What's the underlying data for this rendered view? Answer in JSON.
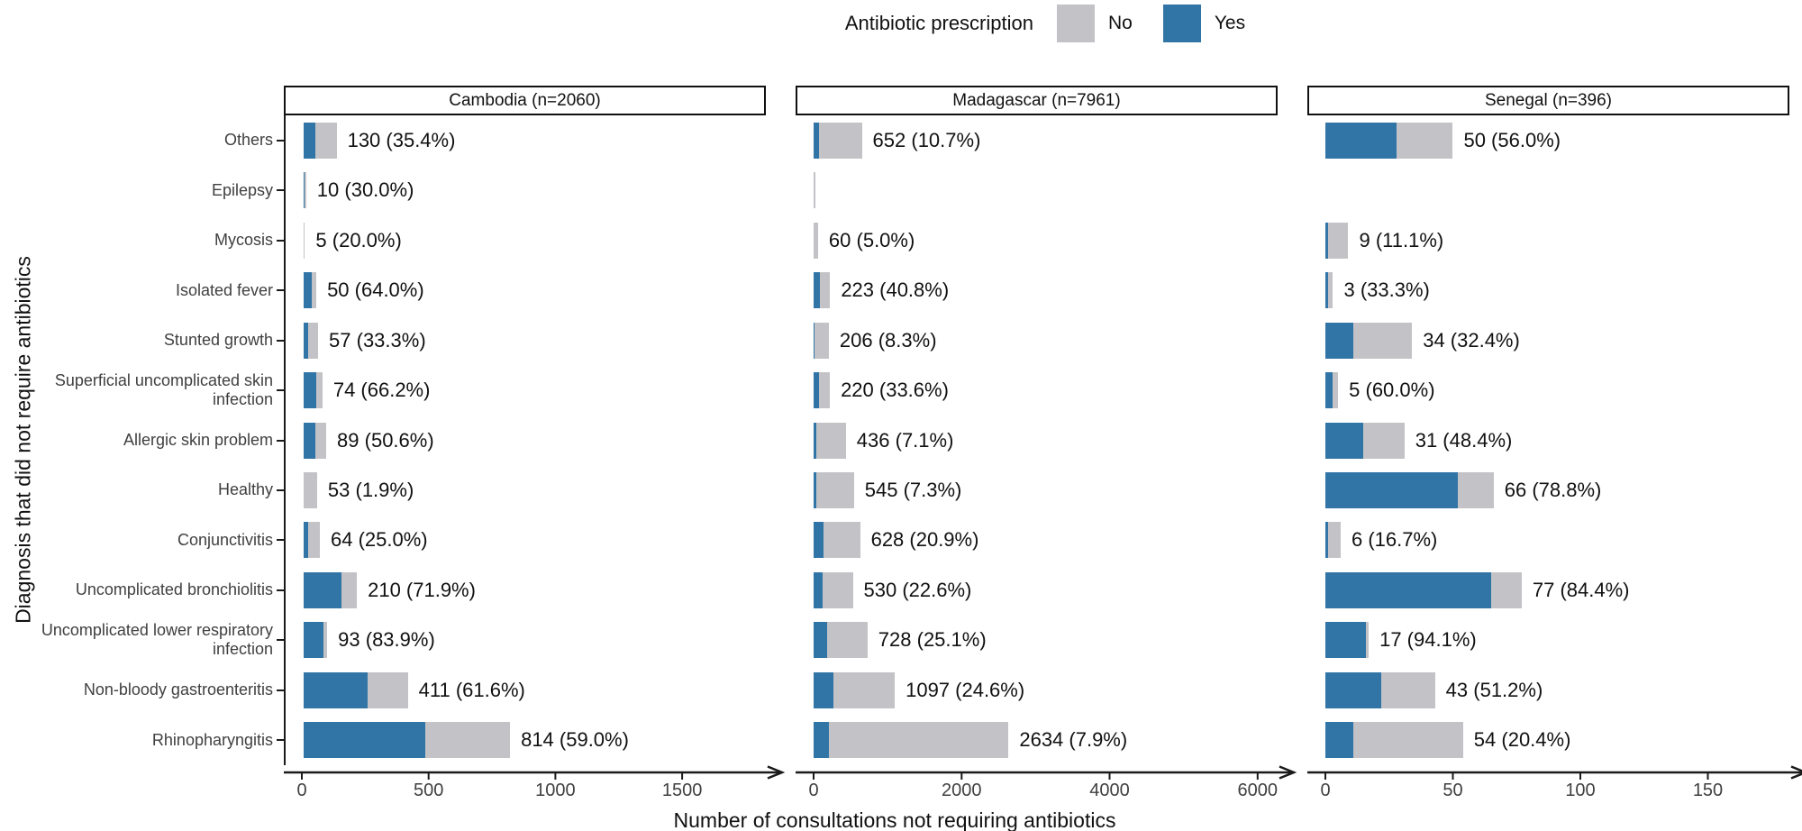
{
  "legend": {
    "title": "Antibiotic prescription",
    "items": [
      {
        "label": "No",
        "color": "#c3c3c7"
      },
      {
        "label": "Yes",
        "color": "#3175a6"
      }
    ]
  },
  "axes": {
    "x_title": "Number of consultations not requiring antibiotics",
    "y_title": "Diagnosis that did not require antibiotics"
  },
  "chart_data": {
    "type": "bar",
    "orientation": "horizontal",
    "stacked": true,
    "grid": false,
    "legend_position": "top",
    "series_colors": {
      "yes": "#3175a6",
      "no": "#c3c3c7"
    },
    "categories": [
      "Others",
      "Epilepsy",
      "Mycosis",
      "Isolated fever",
      "Stunted growth",
      "Superficial uncomplicated skin infection",
      "Allergic skin problem",
      "Healthy",
      "Conjunctivitis",
      "Uncomplicated bronchiolitis",
      "Uncomplicated lower respiratory infection",
      "Non-bloody gastroenteritis",
      "Rhinopharyngitis"
    ],
    "facets": [
      {
        "title": "Cambodia (n=2060)",
        "x_ticks": [
          0,
          500,
          1000,
          1500
        ],
        "x_max": 1830,
        "bars": [
          {
            "total": 130,
            "yes_pct": 35.4,
            "label": "130 (35.4%)"
          },
          {
            "total": 10,
            "yes_pct": 30.0,
            "label": "10 (30.0%)"
          },
          {
            "total": 5,
            "yes_pct": 20.0,
            "label": "5 (20.0%)"
          },
          {
            "total": 50,
            "yes_pct": 64.0,
            "label": "50 (64.0%)"
          },
          {
            "total": 57,
            "yes_pct": 33.3,
            "label": "57 (33.3%)"
          },
          {
            "total": 74,
            "yes_pct": 66.2,
            "label": "74 (66.2%)"
          },
          {
            "total": 89,
            "yes_pct": 50.6,
            "label": "89 (50.6%)"
          },
          {
            "total": 53,
            "yes_pct": 1.9,
            "label": "53 (1.9%)"
          },
          {
            "total": 64,
            "yes_pct": 25.0,
            "label": "64 (25.0%)"
          },
          {
            "total": 210,
            "yes_pct": 71.9,
            "label": "210 (71.9%)"
          },
          {
            "total": 93,
            "yes_pct": 83.9,
            "label": "93 (83.9%)"
          },
          {
            "total": 411,
            "yes_pct": 61.6,
            "label": "411 (61.6%)"
          },
          {
            "total": 814,
            "yes_pct": 59.0,
            "label": "814 (59.0%)"
          }
        ]
      },
      {
        "title": "Madagascar (n=7961)",
        "x_ticks": [
          0,
          2000,
          4000,
          6000
        ],
        "x_max": 6270,
        "bars": [
          {
            "total": 652,
            "yes_pct": 10.7,
            "label": "652 (10.7%)"
          },
          {
            "total": 20,
            "yes_pct": 0,
            "label": "",
            "approx": true
          },
          {
            "total": 60,
            "yes_pct": 5.0,
            "label": "60 (5.0%)"
          },
          {
            "total": 223,
            "yes_pct": 40.8,
            "label": "223 (40.8%)"
          },
          {
            "total": 206,
            "yes_pct": 8.3,
            "label": "206 (8.3%)"
          },
          {
            "total": 220,
            "yes_pct": 33.6,
            "label": "220 (33.6%)"
          },
          {
            "total": 436,
            "yes_pct": 7.1,
            "label": "436 (7.1%)"
          },
          {
            "total": 545,
            "yes_pct": 7.3,
            "label": "545 (7.3%)"
          },
          {
            "total": 628,
            "yes_pct": 20.9,
            "label": "628 (20.9%)"
          },
          {
            "total": 530,
            "yes_pct": 22.6,
            "label": "530 (22.6%)"
          },
          {
            "total": 728,
            "yes_pct": 25.1,
            "label": "728 (25.1%)"
          },
          {
            "total": 1097,
            "yes_pct": 24.6,
            "label": "1097 (24.6%)"
          },
          {
            "total": 2634,
            "yes_pct": 7.9,
            "label": "2634 (7.9%)"
          }
        ]
      },
      {
        "title": "Senegal (n=396)",
        "x_ticks": [
          0,
          50,
          100,
          150
        ],
        "x_max": 182,
        "bars": [
          {
            "total": 50,
            "yes_pct": 56.0,
            "label": "50 (56.0%)"
          },
          {
            "total": 0,
            "yes_pct": 0,
            "label": ""
          },
          {
            "total": 9,
            "yes_pct": 11.1,
            "label": "9 (11.1%)"
          },
          {
            "total": 3,
            "yes_pct": 33.3,
            "label": "3 (33.3%)"
          },
          {
            "total": 34,
            "yes_pct": 32.4,
            "label": "34 (32.4%)"
          },
          {
            "total": 5,
            "yes_pct": 60.0,
            "label": "5 (60.0%)"
          },
          {
            "total": 31,
            "yes_pct": 48.4,
            "label": "31 (48.4%)"
          },
          {
            "total": 66,
            "yes_pct": 78.8,
            "label": "66 (78.8%)"
          },
          {
            "total": 6,
            "yes_pct": 16.7,
            "label": "6 (16.7%)"
          },
          {
            "total": 77,
            "yes_pct": 84.4,
            "label": "77 (84.4%)"
          },
          {
            "total": 17,
            "yes_pct": 94.1,
            "label": "17 (94.1%)"
          },
          {
            "total": 43,
            "yes_pct": 51.2,
            "label": "43 (51.2%)"
          },
          {
            "total": 54,
            "yes_pct": 20.4,
            "label": "54 (20.4%)"
          }
        ]
      }
    ]
  }
}
